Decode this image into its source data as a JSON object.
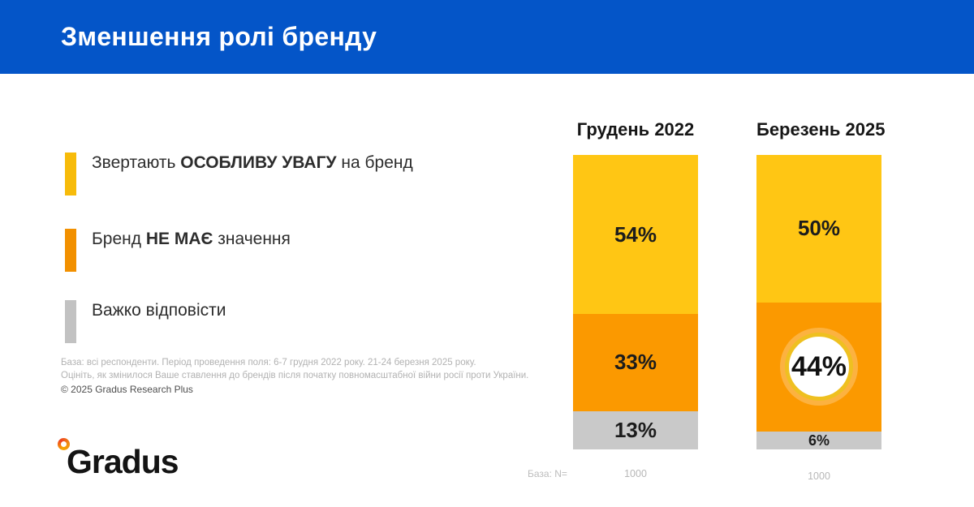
{
  "header": {
    "title": "Зменшення ролі бренду"
  },
  "colors": {
    "header_bg": "#0455C8",
    "yellow": "#FFC614",
    "orange": "#FB9900",
    "gray": "#C9C9C9",
    "legend_yellow": "#F7BB0A",
    "legend_orange": "#F29000",
    "legend_gray": "#C2C2C2",
    "circle_ring": "#EFC020"
  },
  "legend": {
    "items": [
      {
        "pre": "Звертають ",
        "bold": "ОСОБЛИВУ УВАГУ",
        "post": " на бренд",
        "color_key": "legend_yellow"
      },
      {
        "pre": "Бренд ",
        "bold": "НЕ МАЄ",
        "post": " значення",
        "color_key": "legend_orange"
      },
      {
        "pre": "",
        "bold": "",
        "post": "Важко відповісти",
        "color_key": "legend_gray"
      }
    ]
  },
  "notes": {
    "line1": "База: всі респонденти. Період проведення поля: 6-7 грудня 2022 року. 21-24 березня 2025 року.",
    "line2": "Оцініть, як змінилося Ваше ставлення до брендів після початку повномасштабної війни росії проти України.",
    "copyright": "© 2025 Gradus Research Plus"
  },
  "logo": {
    "text": "Gradus"
  },
  "chart_data": {
    "type": "bar",
    "subtype": "stacked-column",
    "title": "Зменшення ролі бренду",
    "categories": [
      "Грудень 2022",
      "Березень 2025"
    ],
    "series": [
      {
        "name": "Звертають ОСОБЛИВУ УВАГУ на бренд",
        "color": "#FFC614",
        "values": [
          54,
          50
        ]
      },
      {
        "name": "Бренд НЕ МАЄ значення",
        "color": "#FB9900",
        "values": [
          33,
          44
        ]
      },
      {
        "name": "Важко відповісти",
        "color": "#C9C9C9",
        "values": [
          13,
          6
        ]
      }
    ],
    "ylim": [
      0,
      100
    ],
    "grid": false,
    "legend_position": "left",
    "highlight": {
      "category": "Березень 2025",
      "series": "Бренд НЕ МАЄ значення",
      "value": 44,
      "label": "44%"
    },
    "base_label": "База: N=",
    "bases": [
      "1000",
      "1000"
    ],
    "bars": [
      {
        "title": "Грудень 2022",
        "base": "1000",
        "segments": [
          {
            "label": "54%",
            "value": 54,
            "color_key": "yellow"
          },
          {
            "label": "33%",
            "value": 33,
            "color_key": "orange"
          },
          {
            "label": "13%",
            "value": 13,
            "color_key": "gray"
          }
        ]
      },
      {
        "title": "Березень 2025",
        "base": "1000",
        "segments": [
          {
            "label": "50%",
            "value": 50,
            "color_key": "yellow"
          },
          {
            "label": "44%",
            "value": 44,
            "color_key": "orange",
            "highlight": true
          },
          {
            "label": "6%",
            "value": 6,
            "color_key": "gray"
          }
        ]
      }
    ]
  }
}
